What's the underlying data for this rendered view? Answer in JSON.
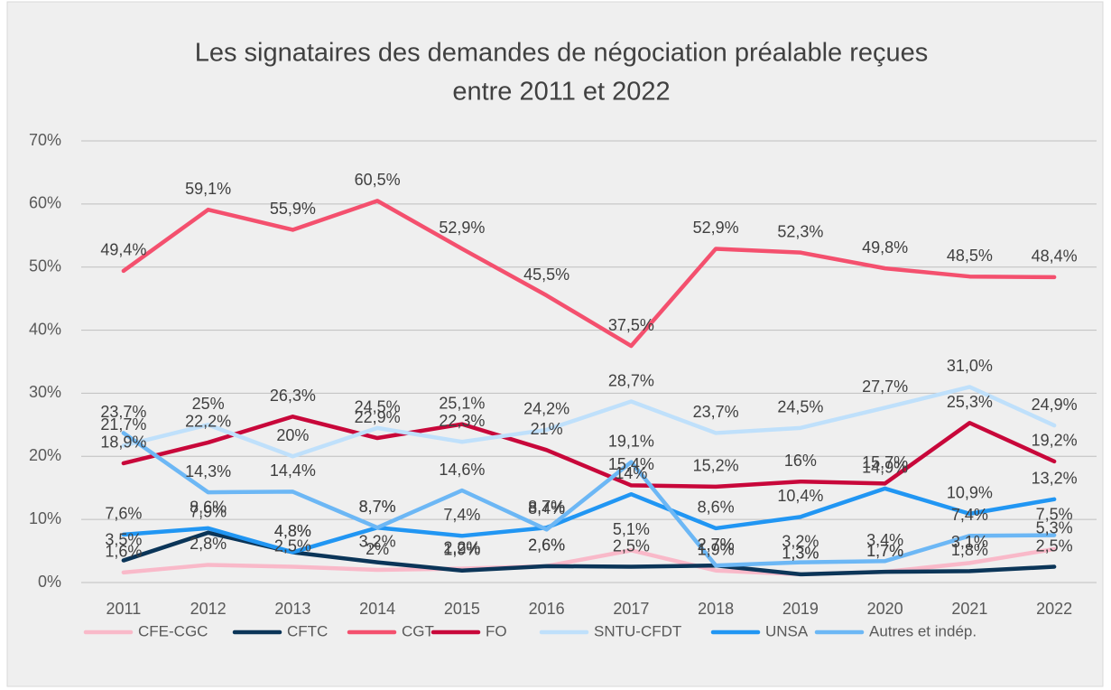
{
  "chart_data": {
    "type": "line",
    "title": [
      "Les signataires des demandes de négociation préalable reçues",
      "entre 2011 et 2022"
    ],
    "categories": [
      "2011",
      "2012",
      "2013",
      "2014",
      "2015",
      "2016",
      "2017",
      "2018",
      "2019",
      "2020",
      "2021",
      "2022"
    ],
    "ylim": [
      0,
      70
    ],
    "yticks": [
      {
        "value": 0,
        "label": "0%"
      },
      {
        "value": 10,
        "label": "10%"
      },
      {
        "value": 20,
        "label": "20%"
      },
      {
        "value": 30,
        "label": "30%"
      },
      {
        "value": 40,
        "label": "40%"
      },
      {
        "value": 50,
        "label": "50%"
      },
      {
        "value": 60,
        "label": "60%"
      },
      {
        "value": 70,
        "label": "70%"
      }
    ],
    "grid": true,
    "legend": "bottom",
    "series": [
      {
        "name": "CFE-CGC",
        "color": "#f9b9c9",
        "values": [
          1.6,
          2.8,
          2.5,
          2,
          2.2,
          2.6,
          5.1,
          1.9,
          1.3,
          1.7,
          3.1,
          5.3
        ],
        "value_labels": [
          "1,6%",
          "2,8%",
          "2,5%",
          "2%",
          "2,2%",
          "2,6%",
          "5,1%",
          "1,9%",
          "1,3%",
          "1,7%",
          "3,1%",
          "5,3%"
        ]
      },
      {
        "name": "CFTC",
        "color": "#0b3558",
        "values": [
          3.5,
          7.9,
          4.8,
          3.2,
          1.9,
          2.6,
          2.5,
          2.7,
          1.3,
          1.7,
          1.8,
          2.5
        ],
        "value_labels": [
          "3,5%",
          "7,9%",
          "4,8%",
          "3,2%",
          "1,9%",
          "2,6%",
          "2,5%",
          "2,7%",
          "1,3%",
          "1,7%",
          "1,8%",
          "2,5%"
        ]
      },
      {
        "name": "CGT",
        "color": "#f4506e",
        "values": [
          49.4,
          59.1,
          55.9,
          60.5,
          52.9,
          45.5,
          37.5,
          52.9,
          52.3,
          49.8,
          48.5,
          48.4
        ],
        "value_labels": [
          "49,4%",
          "59,1%",
          "55,9%",
          "60,5%",
          "52,9%",
          "45,5%",
          "37,5%",
          "52,9%",
          "52,3%",
          "49,8%",
          "48,5%",
          "48,4%"
        ]
      },
      {
        "name": "FO",
        "color": "#c8073a",
        "values": [
          18.9,
          22.2,
          26.3,
          22.9,
          25.1,
          21,
          15.4,
          15.2,
          16,
          15.7,
          25.3,
          19.2
        ],
        "value_labels": [
          "18,9%",
          "22,2%",
          "26,3%",
          "22,9%",
          "25,1%",
          "21%",
          "15,4%",
          "15,2%",
          "16%",
          "15,7%",
          "25,3%",
          "19,2%"
        ]
      },
      {
        "name": "SNTU-CFDT",
        "color": "#bfe0fb",
        "values": [
          21.7,
          25,
          20,
          24.5,
          22.3,
          24.2,
          28.7,
          23.7,
          24.5,
          27.7,
          31.0,
          24.9
        ],
        "value_labels": [
          "21,7%",
          "25%",
          "20%",
          "24,5%",
          "22,3%",
          "24,2%",
          "28,7%",
          "23,7%",
          "24,5%",
          "27,7%",
          "31,0%",
          "24,9%"
        ]
      },
      {
        "name": "UNSA",
        "color": "#2196f3",
        "values": [
          7.6,
          8.6,
          4.8,
          8.7,
          7.4,
          8.7,
          14,
          8.6,
          10.4,
          14.9,
          10.9,
          13.2
        ],
        "value_labels": [
          "7,6%",
          "8,6%",
          "4,8%",
          "8,7%",
          "7,4%",
          "8,7%",
          "14%",
          "8,6%",
          "10,4%",
          "14,9%",
          "10,9%",
          "13,2%"
        ]
      },
      {
        "name": "Autres et indép.",
        "color": "#6cb7f5",
        "values": [
          23.7,
          14.3,
          14.4,
          8.7,
          14.6,
          8.4,
          19.1,
          2.7,
          3.2,
          3.4,
          7.4,
          7.5
        ],
        "value_labels": [
          "23,7%",
          "14,3%",
          "14,4%",
          "8,7%",
          "14,6%",
          "8,4%",
          "19,1%",
          "2,7%",
          "3,2%",
          "3,4%",
          "7,4%",
          "7,5%"
        ]
      }
    ]
  }
}
